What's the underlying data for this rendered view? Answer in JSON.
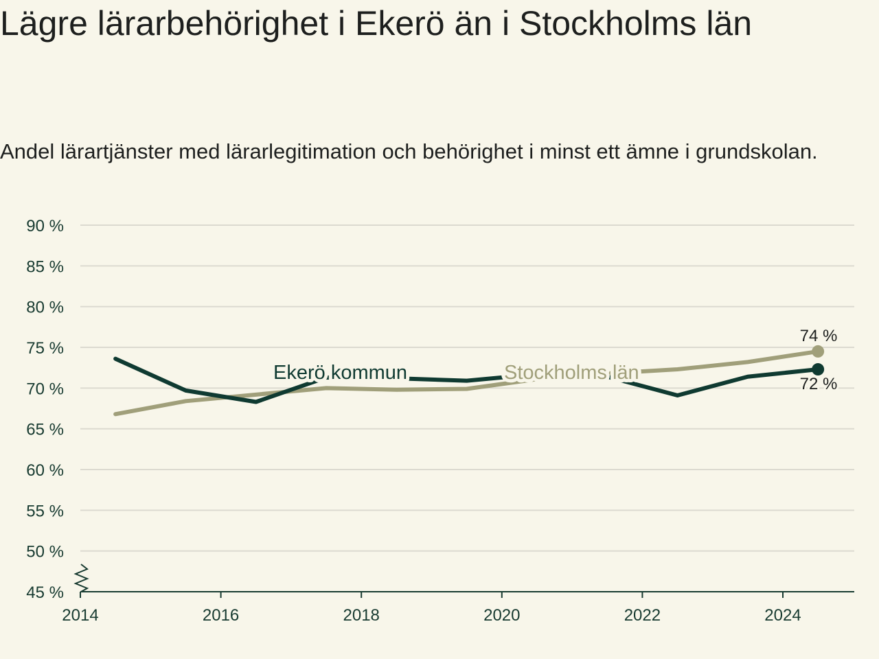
{
  "title": "Lägre lärarbehörighet i Ekerö än i Stockholms län",
  "subtitle": "Andel lärartjänster med lärarlegitimation och behörighet i minst ett ämne i grundskolan.",
  "colors": {
    "background": "#f8f6ea",
    "ekero": "#0f3a31",
    "stockholm": "#a09f7a",
    "grid": "#dcdad0",
    "axis": "#173a30"
  },
  "chart_data": {
    "type": "line",
    "x_ticks": [
      "2014",
      "2016",
      "2018",
      "2020",
      "2022",
      "2024"
    ],
    "y_ticks": [
      "45 %",
      "50 %",
      "55 %",
      "60 %",
      "65 %",
      "70 %",
      "75 %",
      "80 %",
      "85 %",
      "90 %"
    ],
    "ylim": [
      45,
      90
    ],
    "xlim": [
      2014,
      2025
    ],
    "axis_break": true,
    "grid": true,
    "series": [
      {
        "name": "Ekerö kommun",
        "color": "#0f3a31",
        "x": [
          2014.5,
          2015.5,
          2016.5,
          2017.5,
          2018.5,
          2019.5,
          2020.5,
          2021.5,
          2022.5,
          2023.5,
          2024.5
        ],
        "values": [
          73.6,
          69.7,
          68.3,
          71.3,
          71.2,
          70.9,
          71.7,
          71.4,
          69.1,
          71.4,
          72.3
        ],
        "end_label": "72 %"
      },
      {
        "name": "Stockholms län",
        "color": "#a09f7a",
        "x": [
          2014.5,
          2015.5,
          2016.5,
          2017.5,
          2018.5,
          2019.5,
          2020.5,
          2021.5,
          2022.5,
          2023.5,
          2024.5
        ],
        "values": [
          66.8,
          68.4,
          69.2,
          70.0,
          69.8,
          69.9,
          71.1,
          71.8,
          72.3,
          73.2,
          74.5
        ],
        "end_label": "74 %"
      }
    ]
  }
}
